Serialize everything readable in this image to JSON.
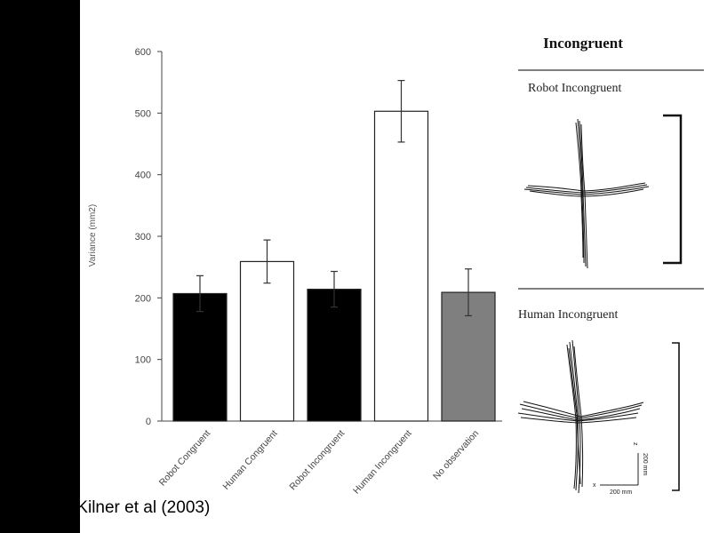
{
  "chart_data": {
    "type": "bar",
    "ylabel": "Variance (mm2)",
    "ylim": [
      0,
      600
    ],
    "yticks": [
      "0",
      "100",
      "200",
      "300",
      "400",
      "500",
      "600"
    ],
    "categories": [
      "Robot Congruent",
      "Human Congruent",
      "Robot Incongruent",
      "Human Incongruent",
      "No observation"
    ],
    "values": [
      207,
      259,
      214,
      503,
      209
    ],
    "error": [
      29,
      35,
      29,
      50,
      38
    ],
    "colors": [
      "#000000",
      "#ffffff",
      "#000000",
      "#ffffff",
      "#7f7f7f"
    ]
  },
  "right_panel": {
    "title": "Incongruent",
    "top_label": "Robot Incongruent",
    "bottom_label": "Human Incongruent",
    "axis_y_label": "200 mm",
    "axis_x_label": "200 mm",
    "axis_z": "z",
    "axis_x": "x"
  },
  "source": {
    "label": "source",
    "text": " Kilner et al (2003)"
  }
}
